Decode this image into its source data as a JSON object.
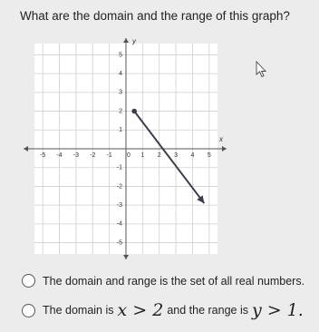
{
  "question": "What are the domain and the range of this graph?",
  "graph": {
    "x_label": "x",
    "y_label": "y",
    "xlim": [
      -5.5,
      5.5
    ],
    "ylim": [
      -5.6,
      5.6
    ],
    "xticks": [
      -5,
      -4,
      -3,
      -2,
      -1,
      0,
      1,
      2,
      3,
      4,
      5
    ],
    "yticks": [
      -5,
      -4,
      -3,
      -2,
      -1,
      1,
      2,
      3,
      4,
      5
    ],
    "segment": {
      "start": [
        0.5,
        2
      ],
      "end": [
        4.7,
        -2.9
      ]
    }
  },
  "options": [
    {
      "text": "The domain and range is the set of all real numbers."
    },
    {
      "parts": [
        "The domain is ",
        "x > 2",
        " and the range is ",
        "y > 1."
      ]
    }
  ]
}
